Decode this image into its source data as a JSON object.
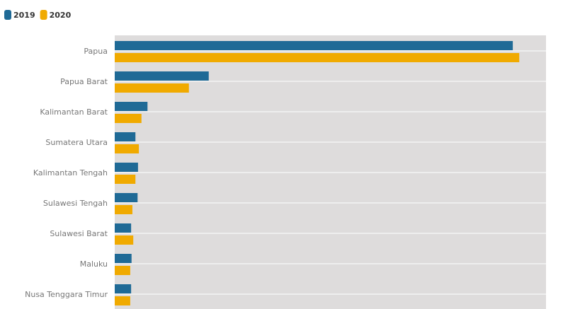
{
  "chart_data": {
    "type": "bar",
    "orientation": "horizontal",
    "categories": [
      "Papua",
      "Papua Barat",
      "Kalimantan Barat",
      "Sumatera Utara",
      "Kalimantan Tengah",
      "Sulawesi Tengah",
      "Sulawesi Barat",
      "Maluku",
      "Nusa Tenggara Timur"
    ],
    "series": [
      {
        "name": "2019",
        "color": "#1f6a96",
        "values": [
          92.3,
          21.8,
          7.6,
          4.8,
          5.4,
          5.3,
          3.8,
          3.9,
          3.8
        ]
      },
      {
        "name": "2020",
        "color": "#f0aa00",
        "values": [
          93.8,
          17.2,
          6.2,
          5.6,
          4.8,
          4.1,
          4.3,
          3.6,
          3.6
        ]
      }
    ],
    "xlim": [
      0,
      100
    ]
  }
}
